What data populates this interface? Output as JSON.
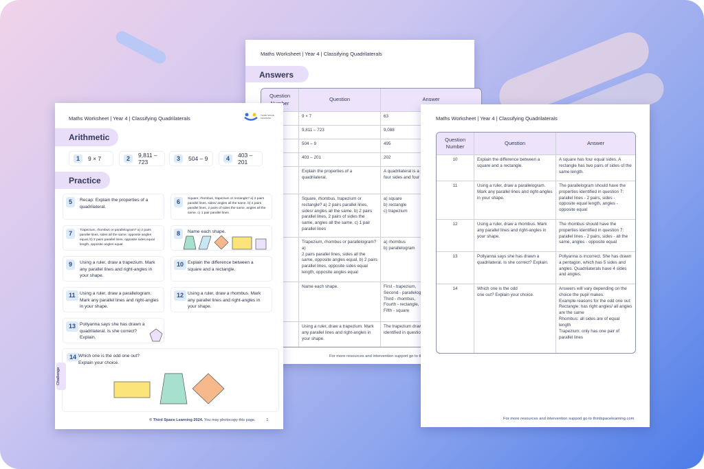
{
  "colors": {
    "bg_start": "#f1d3ea",
    "bg_end": "#4d7ce8",
    "section_pill": "#e9defa",
    "number_badge": "#dceafa",
    "table_header": "#ede4fb"
  },
  "header_title": "Maths Worksheet | Year 4 | Classifying Quadrilaterals",
  "logo": {
    "icon": "third-space-learning-logo",
    "text": "THIRD SPACE LEARNING"
  },
  "worksheet": {
    "arithmetic_heading": "Arithmetic",
    "arithmetic": [
      {
        "n": "1",
        "q": "9 × 7"
      },
      {
        "n": "2",
        "q": "9,811 – 723"
      },
      {
        "n": "3",
        "q": "504 – 9"
      },
      {
        "n": "4",
        "q": "403 – 201"
      }
    ],
    "practice_heading": "Practice",
    "practice": [
      {
        "n": "5",
        "q": "Recap: Explain the properties of a quadrilateral."
      },
      {
        "n": "6",
        "q": "Square, rhombus, trapezium or rectangle? a) 2 pairs parallel lines, sides/ angles all the same. b) 2 pairs parallel lines, 2 pairs of sides the same, angles all the same. c) 1 pair parallel lines"
      },
      {
        "n": "7",
        "q": "Trapezium, rhombus or parallelogram? a) 2 pairs parallel lines, sides all the same, opposite angles equal, b) 2 pairs parallel lines, opposite sides equal length, opposite angles equal"
      },
      {
        "n": "8",
        "q": "Name each shape."
      },
      {
        "n": "9",
        "q": "Using a ruler, draw a trapezium. Mark any parallel lines and right-angles in your shape."
      },
      {
        "n": "10",
        "q": "Explain the difference between a square and a rectangle."
      },
      {
        "n": "11",
        "q": "Using a ruler, draw a parallelogram. Mark any parallel lines and right-angles in your shape."
      },
      {
        "n": "12",
        "q": "Using a ruler, draw a rhombus. Mark any parallel lines and right-angles in your shape."
      },
      {
        "n": "13",
        "q": "Pollyanna says she has drawn a quadrilateral. Is she correct? Explain."
      }
    ],
    "challenge_label": "Challenge",
    "challenge": {
      "n": "14",
      "q": "Which one is the odd one out? Explain your choice."
    },
    "footer_bold": "© Third Space Learning 2024.",
    "footer_rest": " You may photocopy this page.",
    "page_number": "1"
  },
  "answers_page": {
    "heading": "Answers",
    "columns": [
      "Question Number",
      "Question",
      "Answer"
    ],
    "rows": [
      [
        "1",
        "9 × 7",
        "63"
      ],
      [
        "2",
        "9,811 – 723",
        "9,088"
      ],
      [
        "3",
        "504 – 9",
        "495"
      ],
      [
        "4",
        "403 – 201",
        "202"
      ],
      [
        "5",
        "Explain the properties of a quadrilateral.",
        "A quadrilateral is a polygon. Quadrilaterals have four sides and four angles"
      ],
      [
        "6",
        "Square, rhombus, trapezium or rectangle? a) 2 pairs parallel lines, sides/ angles all the same. b) 2 pairs parallel lines, 2 pairs of sides the same, angles all the same, c) 1 pair parallel lines",
        "a) square\nb) rectangle\nc) trapezium"
      ],
      [
        "7",
        "Trapezium, rhombus or parallelogram? a)\n2 pairs parallel lines, sides all the same, opposite angles equal, b) 2 pairs parallel lines, opposite sides equal length, opposite angles equal",
        "a) rhombus\nb) parallelogram"
      ],
      [
        "8",
        "Name each shape.",
        "First - trapezium,\nSecond - parallelogram,\nThird - rhombus,\nFourth - rectangle,\nFifth - square"
      ],
      [
        "9",
        "Using a ruler, draw a trapezium. Mark any parallel lines and right-angles in your shape.",
        "The trapezium drawn should have the properties identified in question 7: parallel lines"
      ]
    ],
    "footer": "For more resources and intervention support go to thirdspacelearning.com"
  },
  "answers_page_2": {
    "columns": [
      "Question Number",
      "Question",
      "Answer"
    ],
    "rows": [
      [
        "10",
        "Explain the difference between a square and a rectangle.",
        "A square has four equal sides. A rectangle has two pairs of sides of the same length."
      ],
      [
        "11",
        "Using a ruler, draw a parallelogram. Mark any parallel lines and right-angles in your shape.",
        "The parallelogram should have the properties identified in question 7: parallel lines - 2 pairs, sides - opposite equal length, angles - opposite equal"
      ],
      [
        "12",
        "Using a ruler, draw a rhombus. Mark any parallel lines and right-angles in your shape.",
        "The rhombus should have the properties identified in question 7: parallel lines - 2 pairs, sides - all the same, angles - opposite equal"
      ],
      [
        "13",
        "Pollyanna says she has drawn a quadrilateral. Is she correct? Explain.",
        "Pollyanna is incorrect. She has drawn a pentagon, which has 5 sides and angles. Quadrilaterals have 4 sides and angles."
      ],
      [
        "14",
        "Which one is the odd\none out? Explain your choice.",
        "Answers will vary depending on the choice the pupil makes.\nExample reasons for the odd one out:\nRectangle: has right angles/ all angles are the same\nRhombus: all sides are of equal length\nTrapezium: only has one pair of parallel lines"
      ]
    ],
    "footer": "For more resources and intervention support go to thirdspacelearning.com"
  }
}
